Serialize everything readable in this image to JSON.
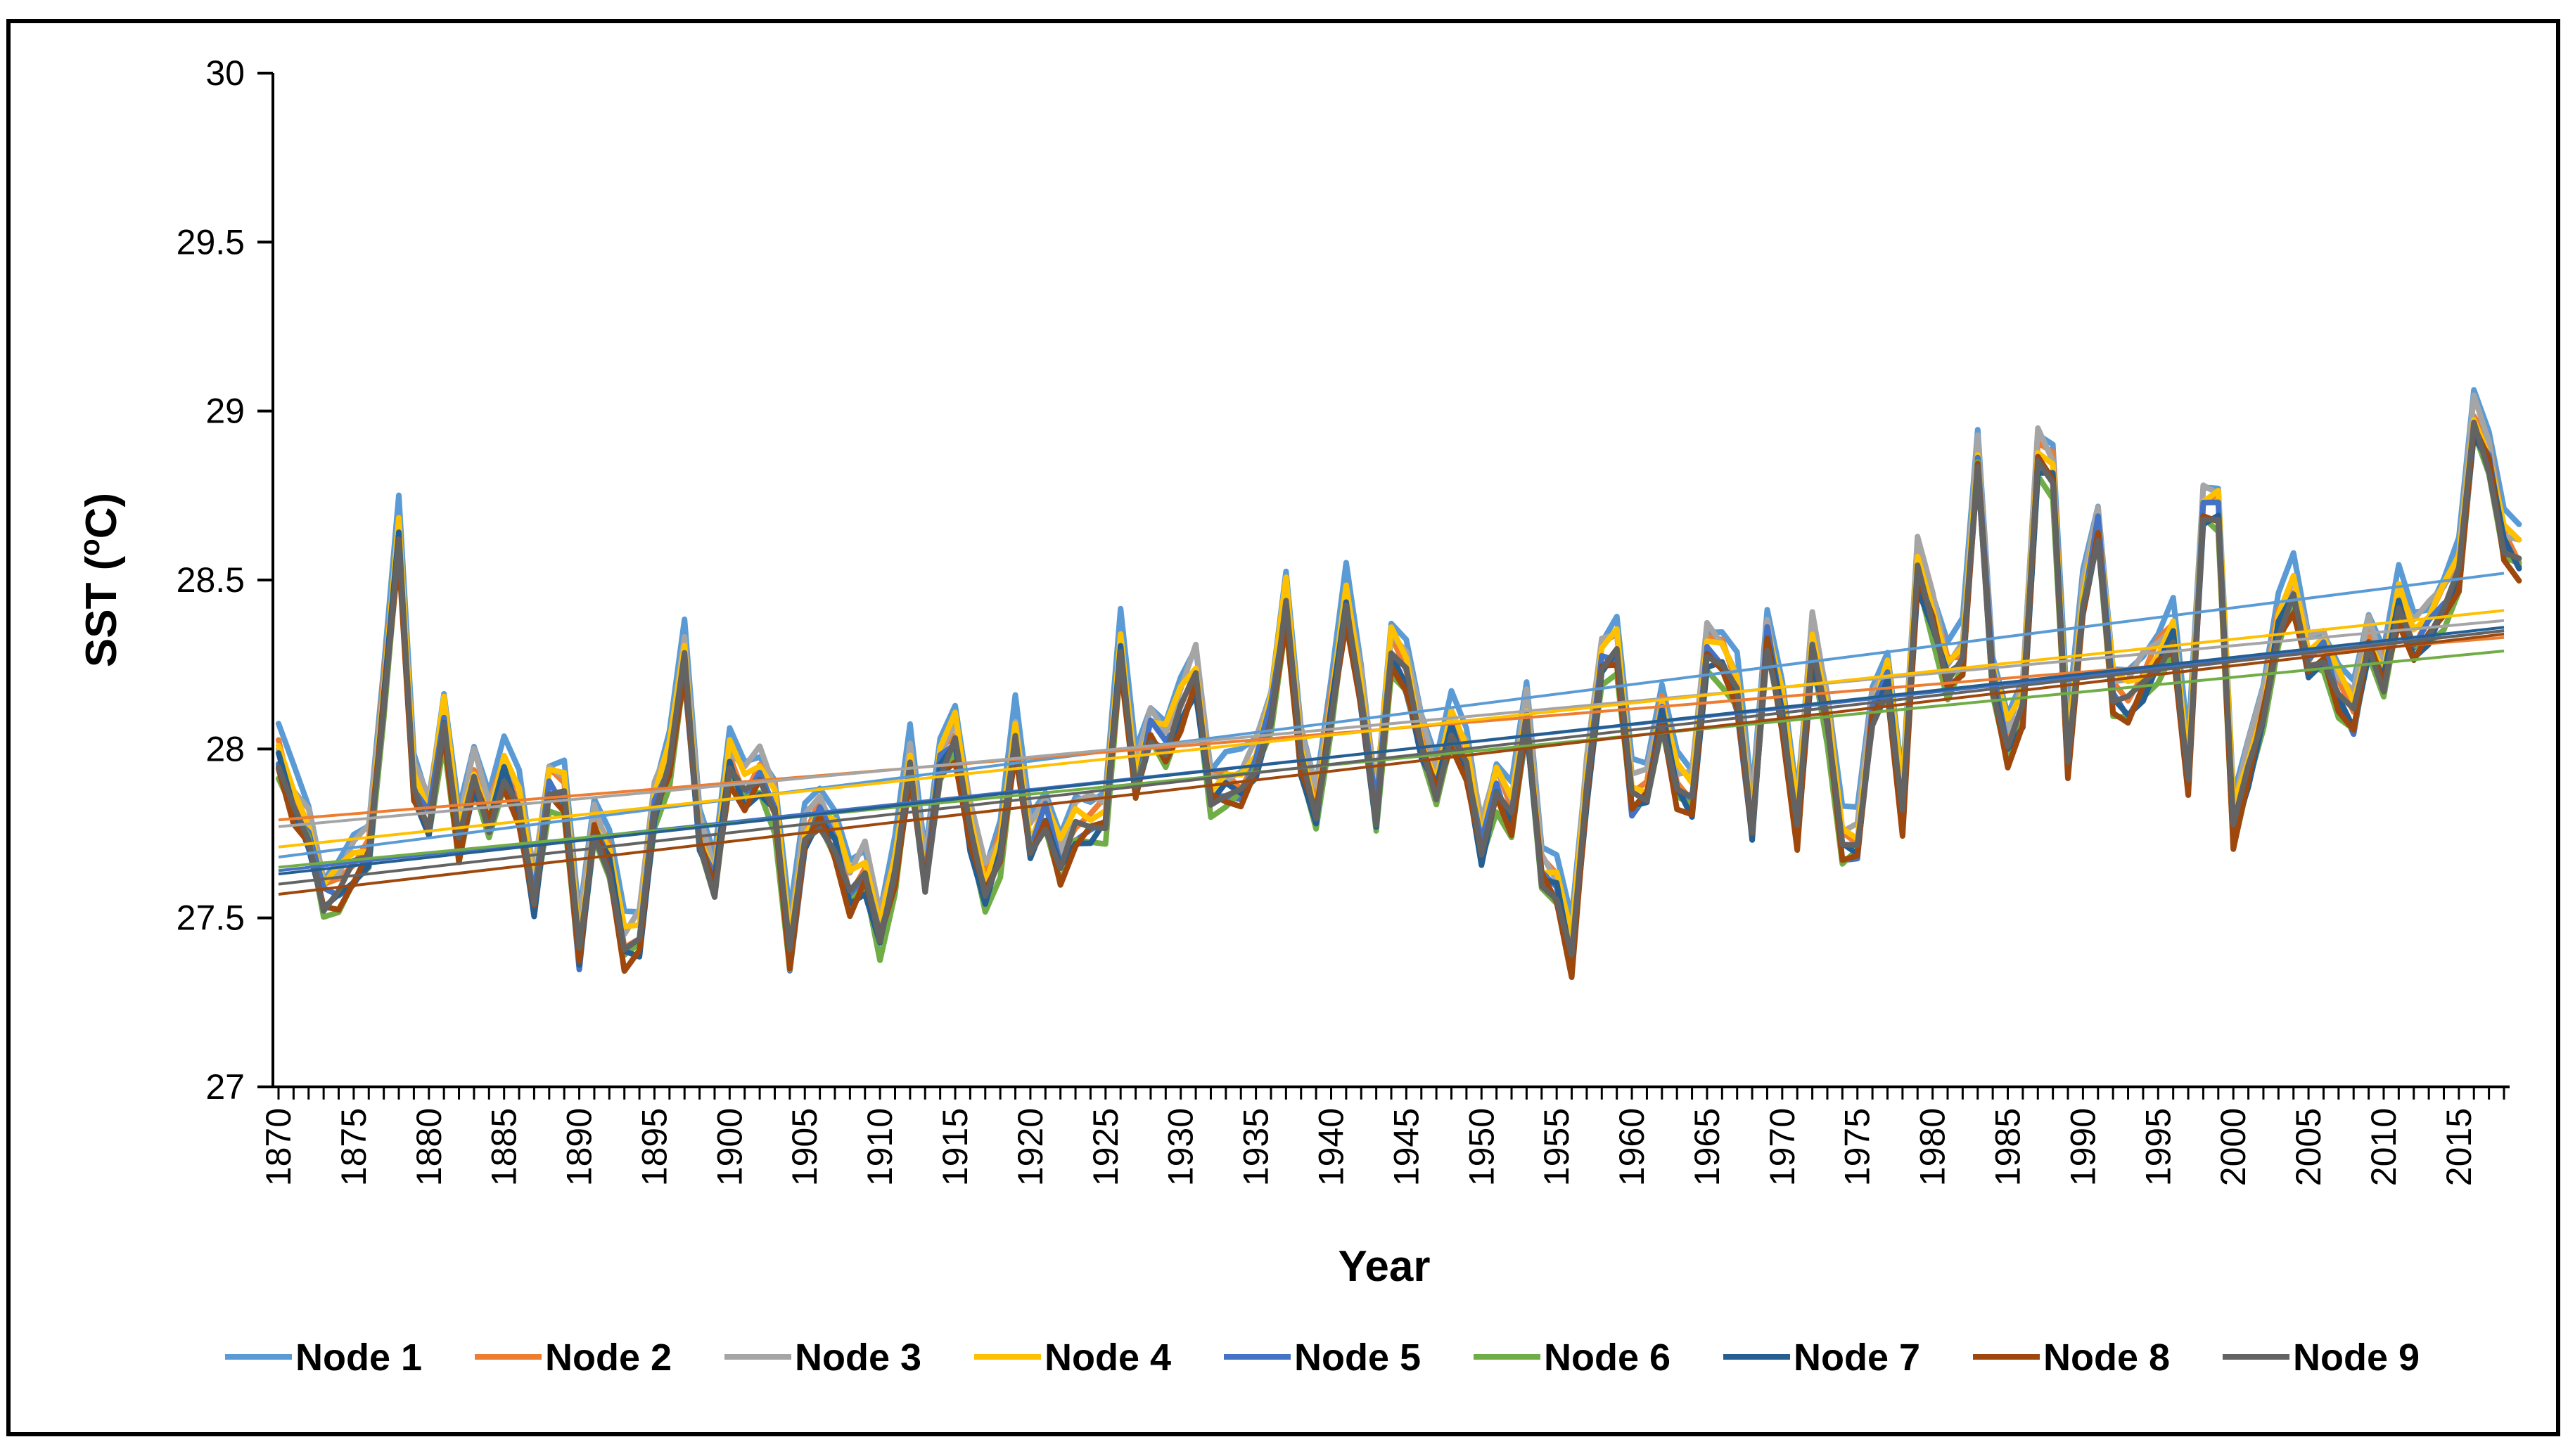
{
  "chart_data": {
    "type": "line",
    "title": "",
    "xlabel": "Year",
    "ylabel": "SST (oC)",
    "ylabel_parts": {
      "base": "SST (",
      "sup": "o",
      "rest": "C)"
    },
    "xlim": [
      1870,
      2018
    ],
    "ylim": [
      27,
      30
    ],
    "yticks": [
      27,
      27.5,
      28,
      28.5,
      29,
      29.5,
      30
    ],
    "ytick_labels": [
      "27",
      "27.5",
      "28",
      "28.5",
      "29",
      "29.5",
      "30"
    ],
    "xticks": [
      1870,
      1875,
      1880,
      1885,
      1890,
      1895,
      1900,
      1905,
      1910,
      1915,
      1920,
      1925,
      1930,
      1935,
      1940,
      1945,
      1950,
      1955,
      1960,
      1965,
      1970,
      1975,
      1980,
      1985,
      1990,
      1995,
      2000,
      2005,
      2010,
      2015
    ],
    "xtick_labels": [
      "1870",
      "1875",
      "1880",
      "1885",
      "1890",
      "1895",
      "1900",
      "1905",
      "1910",
      "1915",
      "1920",
      "1925",
      "1930",
      "1935",
      "1940",
      "1945",
      "1950",
      "1955",
      "1960",
      "1965",
      "1970",
      "1975",
      "1980",
      "1985",
      "1990",
      "1995",
      "2000",
      "2005",
      "2010",
      "2015"
    ],
    "grid": false,
    "legend_position": "bottom",
    "base_series": [
      27.96,
      27.82,
      27.74,
      27.55,
      27.57,
      27.63,
      27.68,
      28.14,
      28.62,
      27.88,
      27.78,
      28.08,
      27.7,
      27.9,
      27.78,
      27.92,
      27.82,
      27.55,
      27.88,
      27.85,
      27.38,
      27.76,
      27.66,
      27.4,
      27.43,
      27.82,
      27.95,
      28.25,
      27.72,
      27.6,
      27.95,
      27.86,
      27.91,
      27.82,
      27.38,
      27.72,
      27.8,
      27.72,
      27.56,
      27.62,
      27.44,
      27.62,
      27.94,
      27.6,
      27.95,
      28.02,
      27.74,
      27.57,
      27.68,
      28.02,
      27.7,
      27.8,
      27.65,
      27.75,
      27.76,
      27.78,
      28.28,
      27.88,
      28.05,
      28.0,
      28.1,
      28.2,
      27.85,
      27.87,
      27.87,
      27.95,
      28.1,
      28.42,
      27.95,
      27.8,
      28.1,
      28.42,
      28.15,
      27.8,
      28.28,
      28.2,
      28.0,
      27.88,
      28.05,
      27.95,
      27.7,
      27.88,
      27.78,
      28.08,
      27.62,
      27.58,
      27.38,
      27.88,
      28.25,
      28.28,
      27.84,
      27.86,
      28.1,
      27.88,
      27.84,
      28.28,
      28.25,
      28.15,
      27.75,
      28.33,
      28.1,
      27.75,
      28.3,
      28.08,
      27.7,
      27.7,
      28.1,
      28.2,
      27.8,
      28.52,
      28.38,
      28.2,
      28.25,
      28.85,
      28.2,
      28.0,
      28.1,
      28.85,
      28.8,
      27.95,
      28.42,
      28.65,
      28.15,
      28.12,
      28.18,
      28.25,
      28.32,
      27.9,
      28.7,
      28.7,
      27.75,
      27.92,
      28.1,
      28.35,
      28.45,
      28.25,
      28.28,
      28.15,
      28.08,
      28.3,
      28.2,
      28.42,
      28.3,
      28.35,
      28.42,
      28.5,
      28.95,
      28.85,
      28.6,
      28.55
    ],
    "series": [
      {
        "name": "Node 1",
        "color": "#5B9BD5",
        "offset": 0.1,
        "trend": [
          27.68,
          28.52
        ]
      },
      {
        "name": "Node 2",
        "color": "#ED7D31",
        "offset": 0.04,
        "trend": [
          27.79,
          28.33
        ]
      },
      {
        "name": "Node 3",
        "color": "#A5A5A5",
        "offset": 0.07,
        "trend": [
          27.77,
          28.38
        ]
      },
      {
        "name": "Node 4",
        "color": "#FFC000",
        "offset": 0.05,
        "trend": [
          27.71,
          28.41
        ]
      },
      {
        "name": "Node 5",
        "color": "#4472C4",
        "offset": 0.0,
        "trend": [
          27.64,
          28.35
        ]
      },
      {
        "name": "Node 6",
        "color": "#70AD47",
        "offset": -0.03,
        "trend": [
          27.65,
          28.29
        ]
      },
      {
        "name": "Node 7",
        "color": "#255E91",
        "offset": -0.01,
        "trend": [
          27.63,
          28.36
        ]
      },
      {
        "name": "Node 8",
        "color": "#9E480E",
        "offset": -0.02,
        "trend": [
          27.57,
          28.34
        ]
      },
      {
        "name": "Node 9",
        "color": "#636363",
        "offset": 0.0,
        "trend": [
          27.6,
          28.35
        ]
      }
    ]
  }
}
